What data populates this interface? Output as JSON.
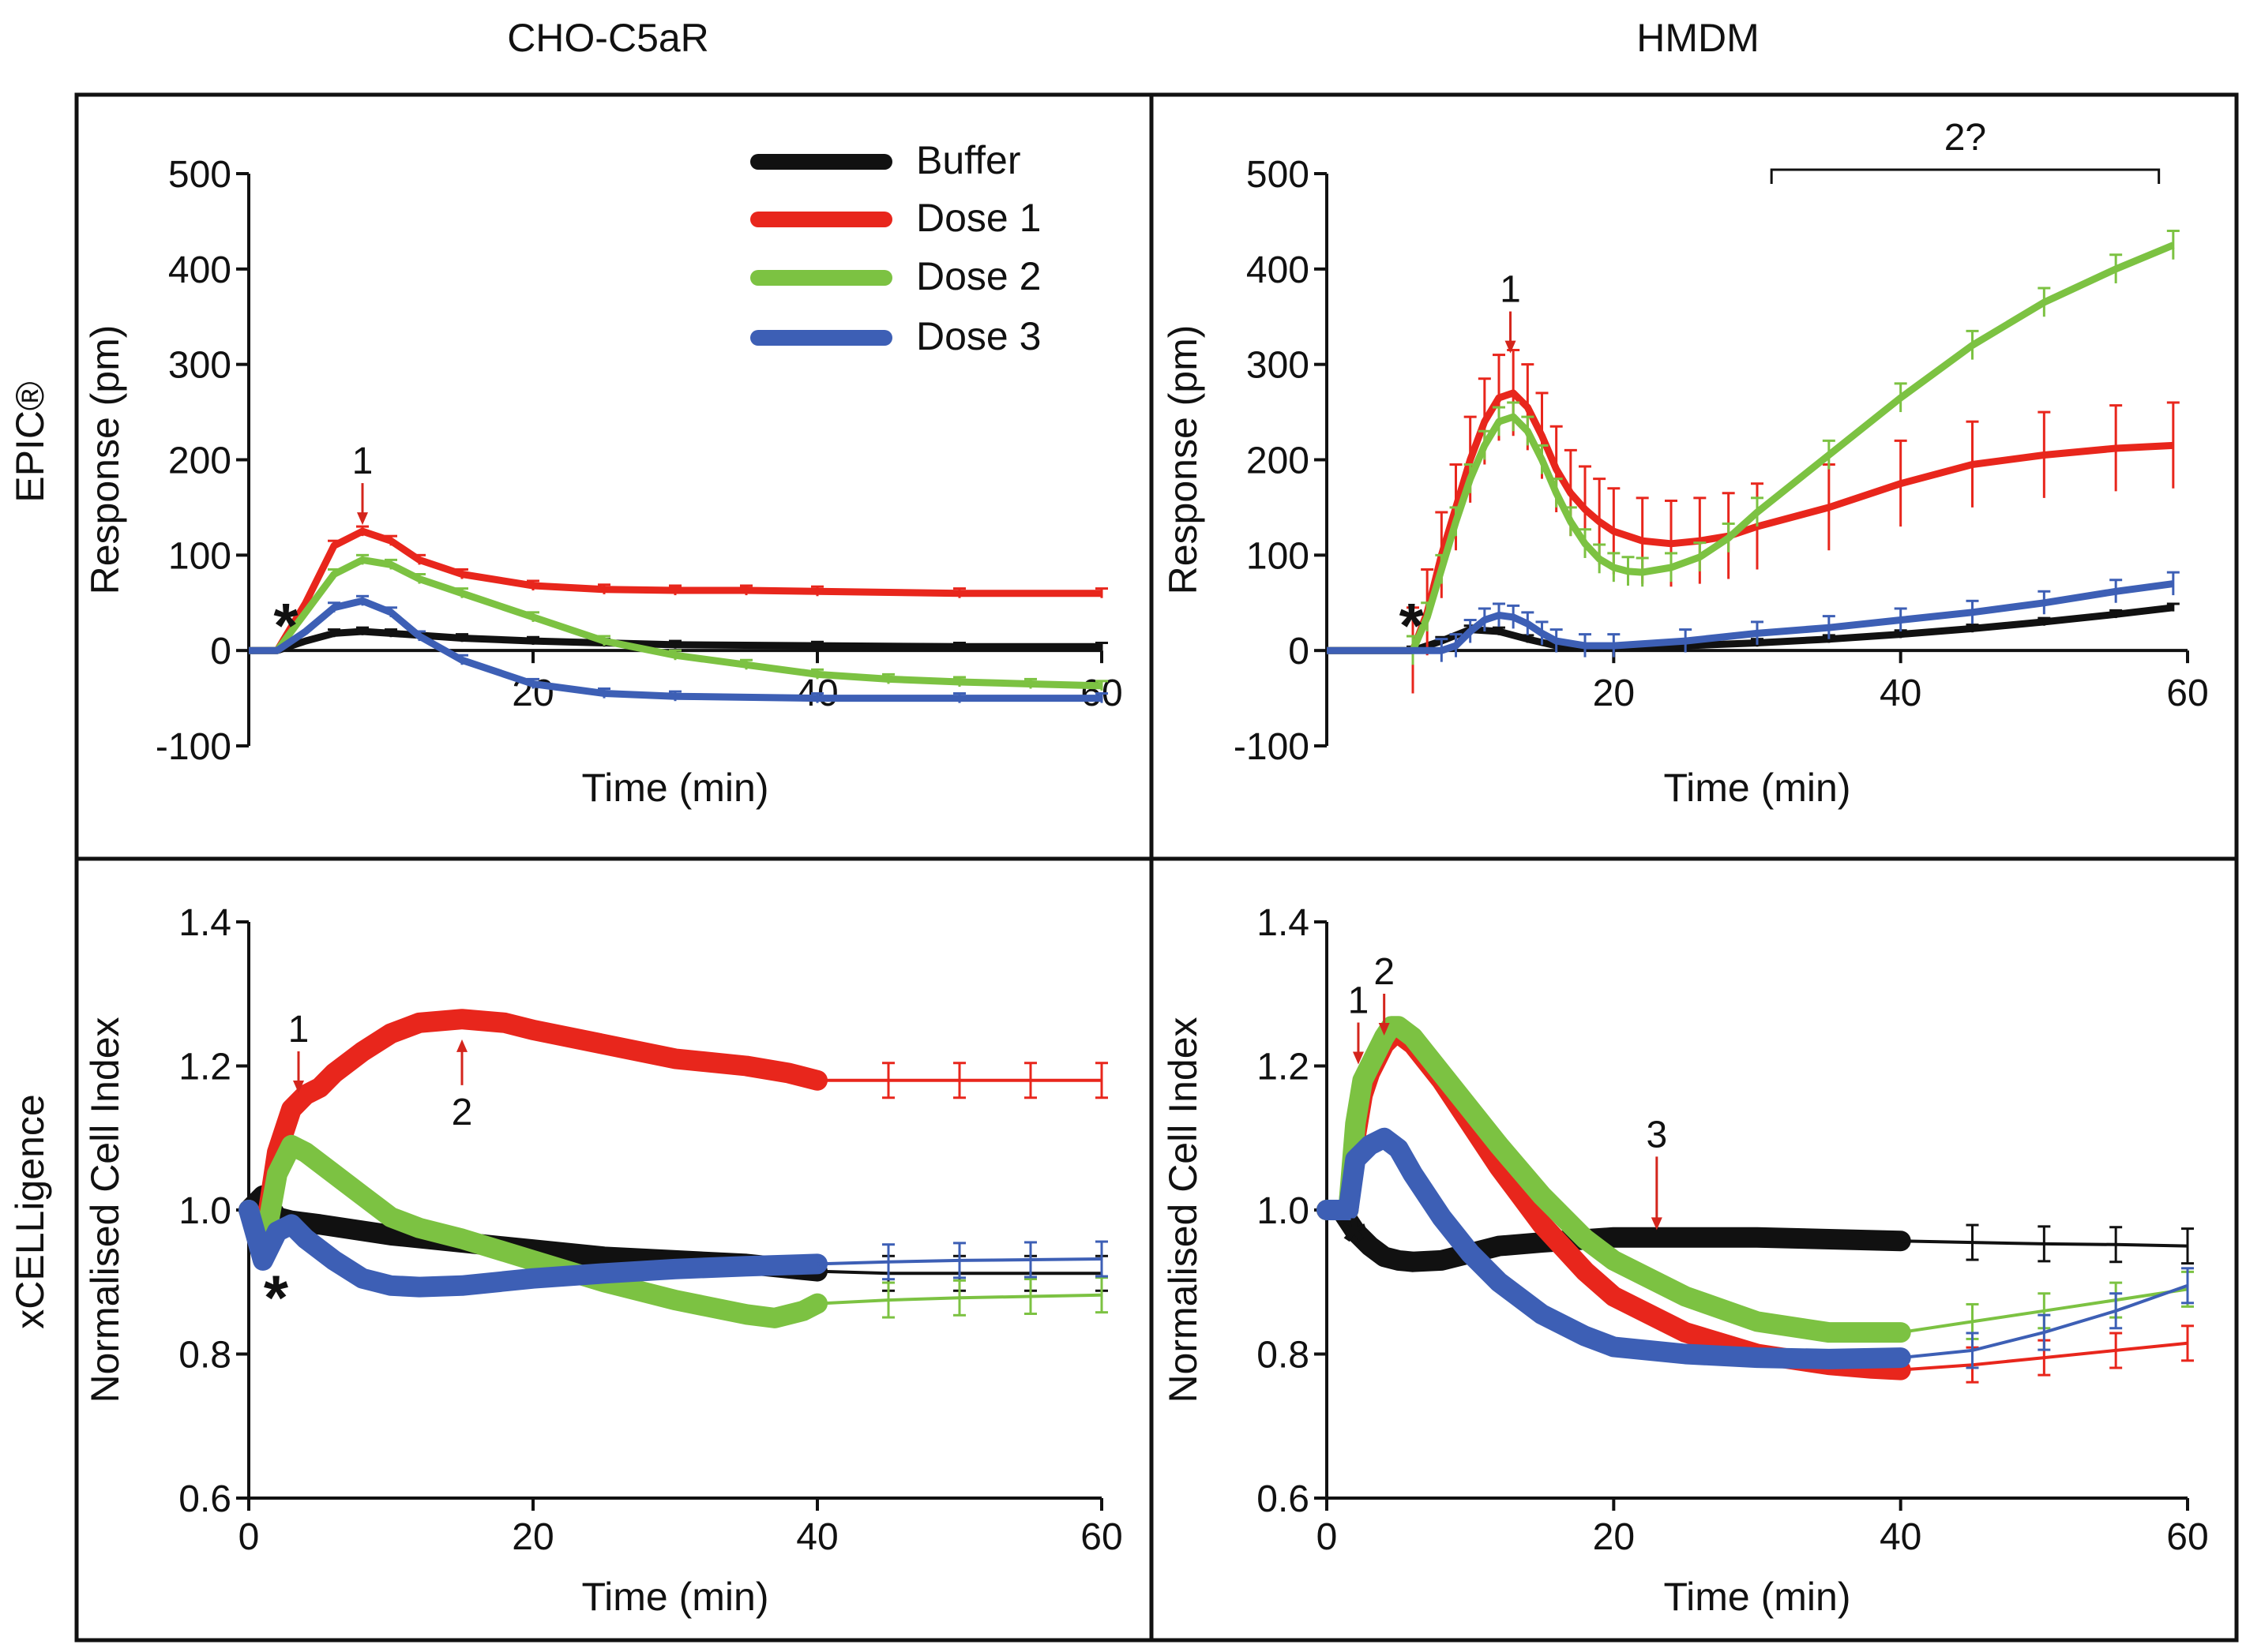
{
  "figure": {
    "column_titles": [
      "CHO-C5aR",
      "HMDM"
    ],
    "row_titles": [
      "EPIC®",
      "xCELLigence"
    ],
    "legend": [
      {
        "label": "Buffer",
        "color": "#111111"
      },
      {
        "label": "Dose 1",
        "color": "#e8261c"
      },
      {
        "label": "Dose 2",
        "color": "#7cc242"
      },
      {
        "label": "Dose 3",
        "color": "#3d5fb5"
      }
    ],
    "colors": {
      "Buffer": "#111111",
      "Dose 1": "#e8261c",
      "Dose 2": "#7cc242",
      "Dose 3": "#3d5fb5",
      "arrow": "#d4251c"
    }
  },
  "chart_data": [
    {
      "id": "epic_cho",
      "type": "line",
      "title": "CHO-C5aR",
      "row": "EPIC®",
      "xlabel": "Time (min)",
      "ylabel": "Response (pm)",
      "xlim": [
        0,
        60
      ],
      "ylim": [
        -100,
        500
      ],
      "xticks": [
        20,
        40,
        60
      ],
      "yticks": [
        -100,
        0,
        100,
        200,
        300,
        400,
        500
      ],
      "legend": true,
      "annotations": [
        {
          "label": "*",
          "kind": "star",
          "x": 1.5,
          "y": 20
        },
        {
          "label": "1",
          "kind": "arrow",
          "x": 8,
          "y": 130
        }
      ],
      "series": [
        {
          "name": "Buffer",
          "err": 4,
          "x": [
            0,
            2,
            4,
            6,
            8,
            10,
            15,
            20,
            25,
            30,
            40,
            50,
            60
          ],
          "y": [
            0,
            0,
            10,
            18,
            20,
            18,
            13,
            10,
            8,
            6,
            5,
            4,
            4
          ]
        },
        {
          "name": "Dose 1",
          "err": 5,
          "x": [
            0,
            2,
            4,
            6,
            8,
            10,
            12,
            15,
            20,
            25,
            30,
            35,
            40,
            50,
            60
          ],
          "y": [
            0,
            0,
            50,
            110,
            125,
            115,
            95,
            80,
            68,
            64,
            63,
            63,
            62,
            60,
            60
          ]
        },
        {
          "name": "Dose 2",
          "err": 5,
          "x": [
            0,
            2,
            4,
            6,
            8,
            10,
            12,
            15,
            20,
            25,
            30,
            35,
            40,
            45,
            50,
            55,
            60
          ],
          "y": [
            0,
            0,
            40,
            80,
            95,
            90,
            75,
            60,
            35,
            10,
            -5,
            -15,
            -25,
            -30,
            -33,
            -35,
            -37
          ]
        },
        {
          "name": "Dose 3",
          "err": 5,
          "x": [
            0,
            2,
            4,
            6,
            8,
            10,
            12,
            15,
            20,
            25,
            30,
            40,
            50,
            60
          ],
          "y": [
            0,
            0,
            20,
            45,
            52,
            40,
            15,
            -10,
            -35,
            -45,
            -48,
            -50,
            -50,
            -50
          ]
        }
      ]
    },
    {
      "id": "epic_hmdm",
      "type": "line",
      "title": "HMDM",
      "row": "EPIC®",
      "xlabel": "Time (min)",
      "ylabel": "Response (pm)",
      "xlim": [
        0,
        60
      ],
      "ylim": [
        -100,
        500
      ],
      "xticks": [
        20,
        40,
        60
      ],
      "yticks": [
        -100,
        0,
        100,
        200,
        300,
        400,
        500
      ],
      "legend": false,
      "annotations": [
        {
          "label": "*",
          "kind": "star",
          "x": 4.8,
          "y": 20
        },
        {
          "label": "1",
          "kind": "arrow",
          "x": 12.8,
          "y": 310
        },
        {
          "label": "2?",
          "kind": "bracket",
          "x1": 31,
          "x2": 58,
          "y": 500
        }
      ],
      "series": [
        {
          "name": "Buffer",
          "err": 4,
          "x": [
            0,
            6,
            8,
            10,
            12,
            14,
            16,
            20,
            25,
            30,
            35,
            40,
            45,
            50,
            55,
            59
          ],
          "y": [
            0,
            0,
            10,
            22,
            20,
            12,
            5,
            3,
            5,
            8,
            12,
            17,
            23,
            30,
            38,
            45
          ]
        },
        {
          "name": "Dose 1",
          "err": 45,
          "x": [
            0,
            6,
            7,
            8,
            9,
            10,
            11,
            12,
            13,
            14,
            15,
            16,
            17,
            18,
            19,
            20,
            22,
            24,
            26,
            28,
            30,
            35,
            40,
            45,
            50,
            55,
            59
          ],
          "y": [
            0,
            0,
            40,
            100,
            150,
            200,
            240,
            265,
            270,
            255,
            225,
            190,
            165,
            148,
            135,
            125,
            115,
            112,
            115,
            120,
            130,
            150,
            175,
            195,
            205,
            212,
            215
          ]
        },
        {
          "name": "Dose 2",
          "err": 15,
          "x": [
            0,
            6,
            7,
            8,
            9,
            10,
            11,
            12,
            13,
            14,
            15,
            16,
            17,
            18,
            19,
            20,
            21,
            22,
            24,
            26,
            28,
            30,
            35,
            40,
            45,
            50,
            55,
            59
          ],
          "y": [
            0,
            0,
            35,
            85,
            135,
            180,
            215,
            240,
            245,
            230,
            200,
            165,
            135,
            112,
            96,
            87,
            83,
            82,
            87,
            98,
            118,
            145,
            205,
            265,
            320,
            365,
            400,
            425
          ]
        },
        {
          "name": "Dose 3",
          "err": 12,
          "x": [
            0,
            8,
            9,
            10,
            11,
            12,
            13,
            14,
            15,
            16,
            18,
            20,
            25,
            30,
            35,
            40,
            45,
            50,
            55,
            59
          ],
          "y": [
            0,
            0,
            5,
            20,
            32,
            37,
            35,
            28,
            18,
            10,
            5,
            5,
            10,
            18,
            24,
            32,
            40,
            50,
            62,
            70
          ]
        }
      ]
    },
    {
      "id": "xcell_cho",
      "type": "line",
      "title": "CHO-C5aR",
      "row": "xCELLigence",
      "xlabel": "Time (min)",
      "ylabel": "Normalised Cell Index",
      "xlim": [
        0,
        60
      ],
      "ylim": [
        0.6,
        1.4
      ],
      "xticks": [
        0,
        20,
        40,
        60
      ],
      "yticks": [
        0.6,
        0.8,
        1.0,
        1.2,
        1.4
      ],
      "legend": false,
      "annotations": [
        {
          "label": "*",
          "kind": "star",
          "x": 0.8,
          "y": 0.87
        },
        {
          "label": "1",
          "kind": "arrow-down",
          "x": 3.5,
          "y": 1.16
        },
        {
          "label": "2",
          "kind": "arrow-up",
          "x": 15,
          "y": 1.25
        }
      ],
      "series": [
        {
          "name": "Buffer",
          "x": [
            0,
            1,
            2,
            3,
            5,
            10,
            15,
            20,
            25,
            30,
            35,
            40,
            45,
            50,
            55,
            60
          ],
          "y": [
            1.0,
            1.02,
            0.99,
            0.985,
            0.98,
            0.965,
            0.955,
            0.945,
            0.935,
            0.93,
            0.925,
            0.915,
            0.912,
            0.912,
            0.912,
            0.912
          ]
        },
        {
          "name": "Dose 1",
          "x": [
            0,
            1,
            2,
            3,
            4,
            5,
            6,
            8,
            10,
            12,
            15,
            18,
            20,
            25,
            30,
            35,
            38,
            40,
            45,
            50,
            55,
            60
          ],
          "y": [
            1.0,
            0.95,
            1.08,
            1.14,
            1.16,
            1.17,
            1.19,
            1.22,
            1.245,
            1.26,
            1.265,
            1.26,
            1.25,
            1.23,
            1.21,
            1.2,
            1.19,
            1.18,
            1.18,
            1.18,
            1.18,
            1.18
          ]
        },
        {
          "name": "Dose 2",
          "x": [
            0,
            1,
            2,
            3,
            4,
            6,
            8,
            10,
            12,
            15,
            20,
            25,
            30,
            35,
            37,
            39,
            40,
            45,
            50,
            55,
            60
          ],
          "y": [
            1.0,
            0.94,
            1.05,
            1.09,
            1.08,
            1.05,
            1.02,
            0.99,
            0.975,
            0.96,
            0.93,
            0.9,
            0.875,
            0.855,
            0.85,
            0.86,
            0.87,
            0.875,
            0.878,
            0.88,
            0.882
          ]
        },
        {
          "name": "Dose 3",
          "x": [
            0,
            1,
            2,
            3,
            4,
            6,
            8,
            10,
            12,
            15,
            20,
            25,
            30,
            35,
            40,
            45,
            50,
            55,
            60
          ],
          "y": [
            1.0,
            0.93,
            0.97,
            0.98,
            0.96,
            0.93,
            0.905,
            0.895,
            0.893,
            0.895,
            0.905,
            0.912,
            0.918,
            0.922,
            0.925,
            0.928,
            0.93,
            0.931,
            0.932
          ]
        }
      ]
    },
    {
      "id": "xcell_hmdm",
      "type": "line",
      "title": "HMDM",
      "row": "xCELLigence",
      "xlabel": "Time (min)",
      "ylabel": "Normalised Cell Index",
      "xlim": [
        0,
        60
      ],
      "ylim": [
        0.6,
        1.4
      ],
      "xticks": [
        0,
        20,
        40,
        60
      ],
      "yticks": [
        0.6,
        0.8,
        1.0,
        1.2,
        1.4
      ],
      "legend": false,
      "annotations": [
        {
          "label": "*",
          "kind": "star",
          "x": 0.8,
          "y": 0.95
        },
        {
          "label": "1",
          "kind": "arrow-down",
          "x": 2.2,
          "y": 1.2
        },
        {
          "label": "2",
          "kind": "arrow-down",
          "x": 4.0,
          "y": 1.24
        },
        {
          "label": "3",
          "kind": "arrow-down",
          "x": 23,
          "y": 0.97
        }
      ],
      "series": [
        {
          "name": "Buffer",
          "x": [
            0,
            1,
            2,
            3,
            4,
            5,
            6,
            8,
            10,
            12,
            15,
            20,
            25,
            30,
            40,
            45,
            50,
            55,
            60
          ],
          "y": [
            1.0,
            1.0,
            0.97,
            0.95,
            0.935,
            0.93,
            0.928,
            0.93,
            0.94,
            0.95,
            0.955,
            0.962,
            0.962,
            0.962,
            0.957,
            0.955,
            0.953,
            0.952,
            0.95
          ]
        },
        {
          "name": "Dose 1",
          "x": [
            0,
            1.5,
            2,
            2.5,
            3,
            3.5,
            4,
            4.5,
            5,
            6,
            8,
            10,
            12,
            15,
            18,
            20,
            25,
            30,
            35,
            38,
            40,
            45,
            50,
            55,
            60
          ],
          "y": [
            1.0,
            1.0,
            1.1,
            1.16,
            1.19,
            1.21,
            1.23,
            1.24,
            1.245,
            1.23,
            1.18,
            1.12,
            1.06,
            0.98,
            0.915,
            0.88,
            0.83,
            0.8,
            0.785,
            0.78,
            0.778,
            0.785,
            0.795,
            0.805,
            0.815
          ]
        },
        {
          "name": "Dose 2",
          "x": [
            0,
            1.5,
            2,
            2.5,
            3,
            3.5,
            4,
            4.5,
            5,
            6,
            8,
            10,
            12,
            15,
            18,
            20,
            25,
            30,
            35,
            38,
            40,
            45,
            50,
            55,
            60
          ],
          "y": [
            1.0,
            1.0,
            1.12,
            1.18,
            1.2,
            1.22,
            1.24,
            1.255,
            1.255,
            1.24,
            1.19,
            1.14,
            1.09,
            1.02,
            0.96,
            0.93,
            0.88,
            0.845,
            0.83,
            0.83,
            0.83,
            0.845,
            0.86,
            0.875,
            0.89
          ]
        },
        {
          "name": "Dose 3",
          "x": [
            0,
            1.5,
            2,
            3,
            4,
            5,
            6,
            8,
            10,
            12,
            15,
            18,
            20,
            25,
            30,
            35,
            40,
            45,
            50,
            55,
            60
          ],
          "y": [
            1.0,
            1.0,
            1.07,
            1.09,
            1.1,
            1.085,
            1.05,
            0.99,
            0.94,
            0.9,
            0.855,
            0.825,
            0.81,
            0.8,
            0.795,
            0.793,
            0.795,
            0.805,
            0.83,
            0.86,
            0.895
          ]
        }
      ]
    }
  ]
}
